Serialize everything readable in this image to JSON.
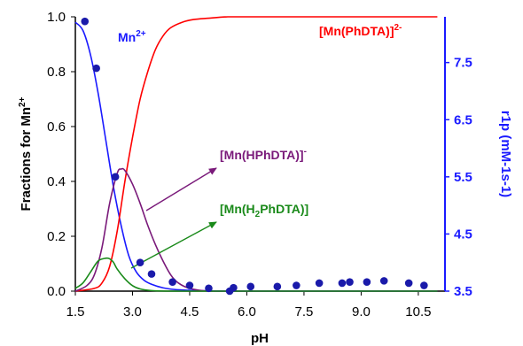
{
  "chart_data": {
    "type": "line",
    "xlabel": "pH",
    "ylabel_left": "Fractions for Mn",
    "ylabel_left_sup": "2+",
    "ylabel_right": "r1p (mM-1s-1)",
    "xlim": [
      1.5,
      11.2
    ],
    "ylim_left": [
      0,
      1.0
    ],
    "ylim_right": [
      3.5,
      8.3
    ],
    "x_ticks": [
      "1.5",
      "3.0",
      "4.5",
      "6.0",
      "7.5",
      "9.0",
      "10.5"
    ],
    "x_tick_values": [
      1.5,
      3.0,
      4.5,
      6.0,
      7.5,
      9.0,
      10.5
    ],
    "y_left_ticks": [
      "0.0",
      "0.2",
      "0.4",
      "0.6",
      "0.8",
      "1.0"
    ],
    "y_left_tick_values": [
      0,
      0.2,
      0.4,
      0.6,
      0.8,
      1.0
    ],
    "y_right_ticks": [
      "3.5",
      "4.5",
      "5.5",
      "6.5",
      "7.5"
    ],
    "y_right_tick_values": [
      3.5,
      4.5,
      5.5,
      6.5,
      7.5
    ],
    "series": [
      {
        "name": "Mn2+",
        "color": "#1a1aff",
        "x": [
          1.5,
          1.7,
          1.9,
          2.1,
          2.3,
          2.5,
          2.7,
          2.9,
          3.1,
          3.3,
          3.5,
          3.8,
          4.1,
          4.5,
          5.0,
          5.5,
          6.0,
          7.0,
          11.0
        ],
        "values": [
          0.98,
          0.95,
          0.86,
          0.72,
          0.55,
          0.38,
          0.24,
          0.13,
          0.07,
          0.04,
          0.025,
          0.012,
          0.006,
          0.003,
          0.001,
          0.0,
          0.0,
          0.0,
          0.0
        ]
      },
      {
        "name": "[Mn(PhDTA)]2-",
        "color": "#ff0000",
        "x": [
          1.5,
          2.0,
          2.2,
          2.4,
          2.6,
          2.8,
          3.0,
          3.2,
          3.4,
          3.6,
          3.8,
          4.0,
          4.3,
          4.6,
          5.0,
          5.5,
          6.0,
          7.0,
          11.0
        ],
        "values": [
          0.0,
          0.01,
          0.03,
          0.09,
          0.22,
          0.4,
          0.56,
          0.7,
          0.8,
          0.88,
          0.93,
          0.96,
          0.98,
          0.99,
          0.995,
          1.0,
          1.0,
          1.0,
          1.0
        ]
      },
      {
        "name": "[Mn(HPhDTA)]-",
        "color": "#7a1a7a",
        "x": [
          1.5,
          1.8,
          2.0,
          2.2,
          2.4,
          2.6,
          2.7,
          2.8,
          3.0,
          3.2,
          3.4,
          3.6,
          3.8,
          4.0,
          4.2,
          4.5,
          5.0,
          6.0,
          11.0
        ],
        "values": [
          0.0,
          0.02,
          0.06,
          0.16,
          0.32,
          0.43,
          0.445,
          0.44,
          0.39,
          0.32,
          0.24,
          0.17,
          0.11,
          0.06,
          0.03,
          0.01,
          0.0,
          0.0,
          0.0
        ]
      },
      {
        "name": "[Mn(H2PhDTA)]",
        "color": "#1a8a1a",
        "x": [
          1.5,
          1.7,
          1.9,
          2.1,
          2.3,
          2.4,
          2.5,
          2.6,
          2.8,
          3.0,
          3.2,
          3.5,
          4.0,
          5.0,
          11.0
        ],
        "values": [
          0.01,
          0.03,
          0.07,
          0.11,
          0.12,
          0.118,
          0.105,
          0.08,
          0.045,
          0.02,
          0.008,
          0.002,
          0.0,
          0.0,
          0.0
        ]
      }
    ],
    "points": {
      "name": "r1p",
      "color": "#1a1aaa",
      "axis": "right",
      "x": [
        1.75,
        2.05,
        2.55,
        3.2,
        3.5,
        4.05,
        4.5,
        5.0,
        5.55,
        5.65,
        6.1,
        6.8,
        7.3,
        7.9,
        8.5,
        8.7,
        9.15,
        9.6,
        10.25,
        10.65
      ],
      "values": [
        8.22,
        7.4,
        5.5,
        4.0,
        3.8,
        3.66,
        3.6,
        3.55,
        3.5,
        3.56,
        3.58,
        3.58,
        3.6,
        3.64,
        3.64,
        3.66,
        3.66,
        3.68,
        3.64,
        3.6
      ]
    },
    "annotations": [
      {
        "text": "Mn",
        "sup": "2+",
        "color": "#1a1aff"
      },
      {
        "text": "[Mn(PhDTA)]",
        "sup": "2-",
        "color": "#ff0000"
      },
      {
        "text": "[Mn(HPhDTA)]",
        "sup": "-",
        "color": "#7a1a7a"
      },
      {
        "text_pre": "[Mn(H",
        "sub": "2",
        "text_post": "PhDTA)]",
        "color": "#1a8a1a"
      }
    ],
    "grid": false
  }
}
